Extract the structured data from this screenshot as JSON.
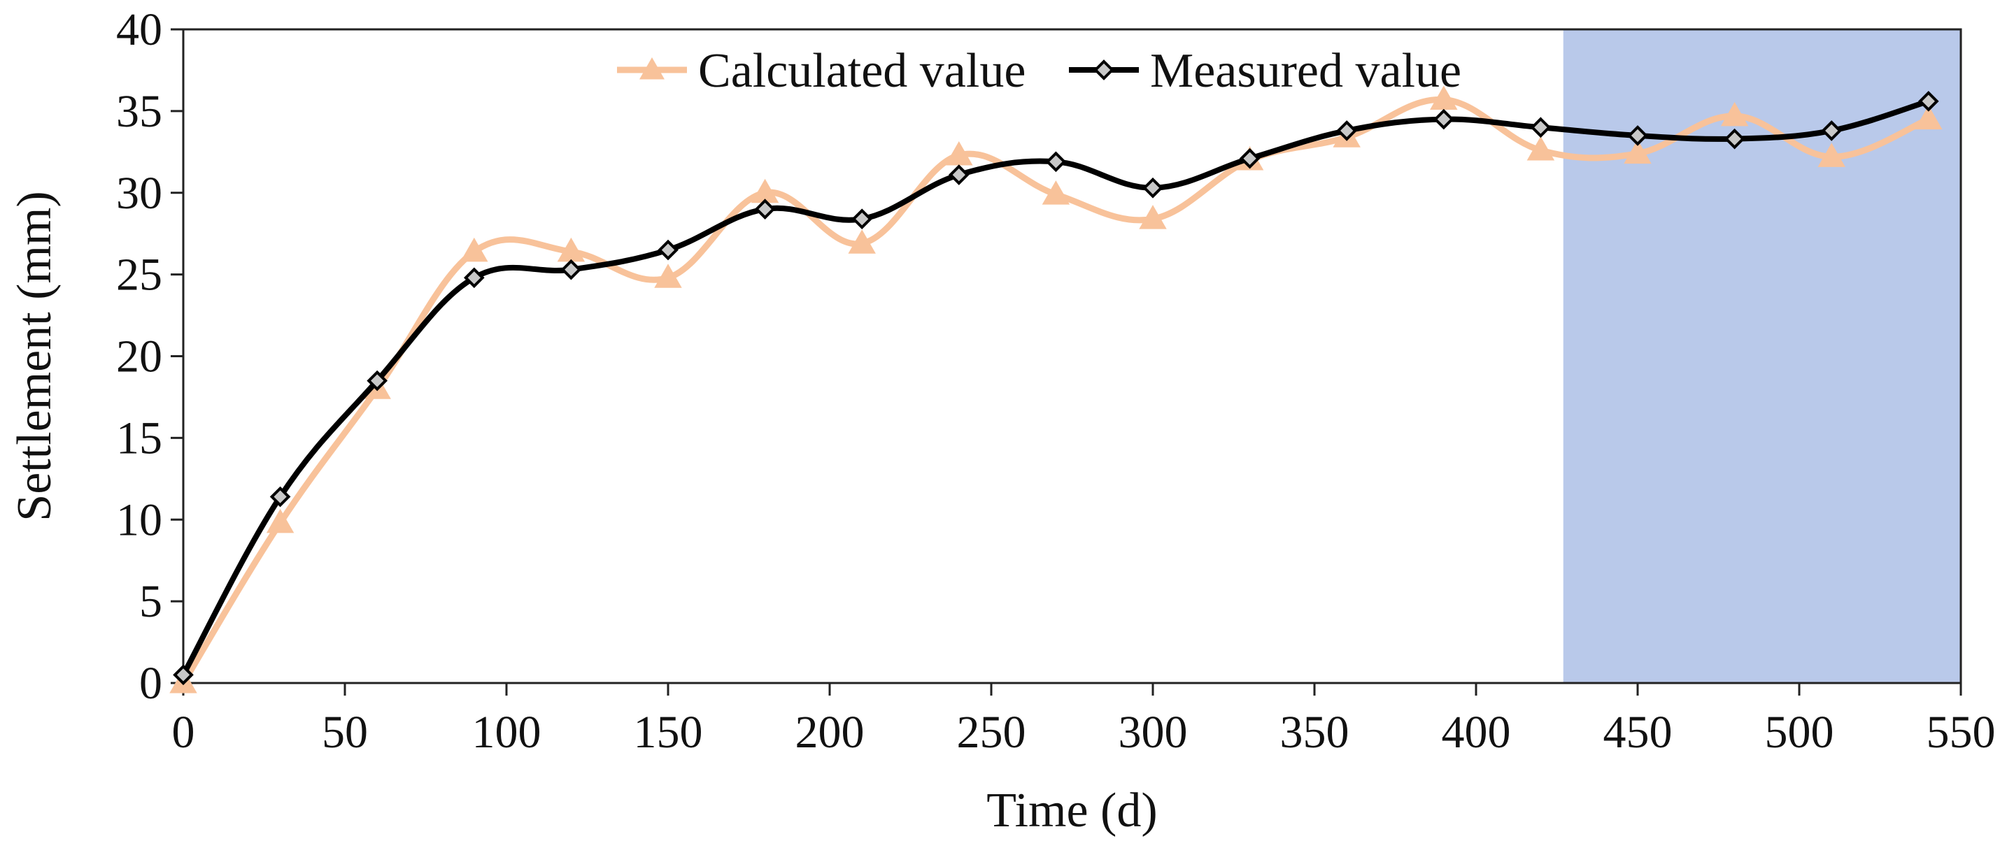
{
  "chart_data": {
    "type": "line",
    "title": "",
    "xlabel": "Time (d)",
    "ylabel": "Settlement (mm)",
    "xlim": [
      0,
      550
    ],
    "ylim": [
      0,
      40
    ],
    "xticks": [
      0,
      50,
      100,
      150,
      200,
      250,
      300,
      350,
      400,
      450,
      500,
      550
    ],
    "yticks": [
      0,
      5,
      10,
      15,
      20,
      25,
      30,
      35,
      40
    ],
    "x": [
      0,
      30,
      60,
      90,
      120,
      150,
      180,
      210,
      240,
      270,
      300,
      330,
      360,
      390,
      420,
      450,
      480,
      510,
      540
    ],
    "series": [
      {
        "name": "Calculated value",
        "color": "#F8C29A",
        "marker": "triangle",
        "values": [
          0.0,
          9.8,
          18.0,
          26.4,
          26.4,
          24.8,
          30.0,
          26.9,
          32.3,
          29.9,
          28.4,
          32.0,
          33.4,
          35.7,
          32.6,
          32.4,
          34.7,
          32.2,
          34.5
        ]
      },
      {
        "name": "Measured value",
        "color": "#000000",
        "marker": "diamond",
        "values": [
          0.5,
          11.4,
          18.5,
          24.8,
          25.3,
          26.5,
          29.0,
          28.4,
          31.1,
          31.9,
          30.3,
          32.1,
          33.8,
          34.5,
          34.0,
          33.5,
          33.3,
          33.8,
          35.6
        ]
      }
    ],
    "shaded_region": {
      "x_start": 427,
      "x_end": 550,
      "color": "#B9C9EA"
    },
    "legend_position": "top-center",
    "grid": false
  }
}
